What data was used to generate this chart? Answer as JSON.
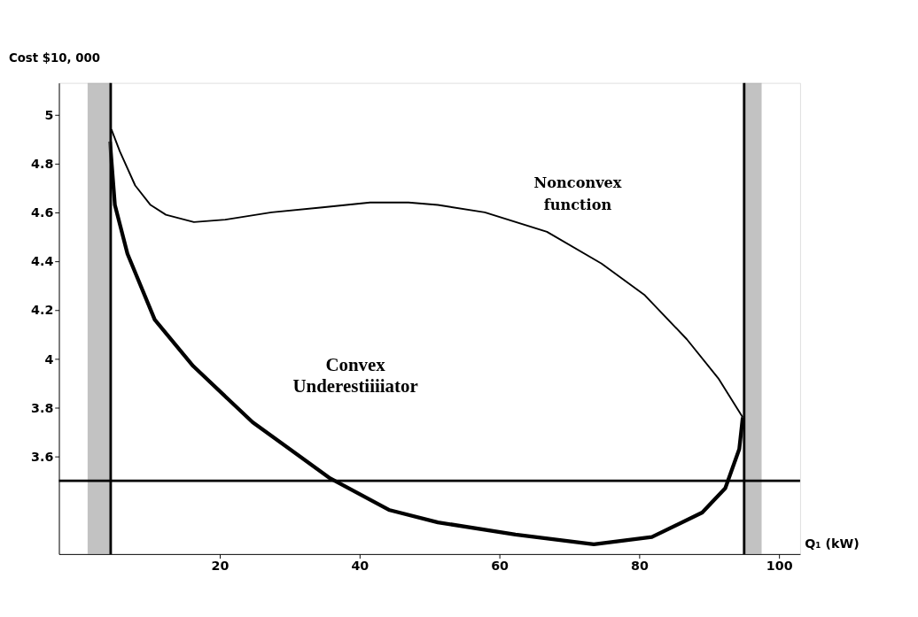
{
  "chart_data": {
    "type": "line",
    "ylabel": "Cost $10, 000",
    "xlabel": "Q₁ (kW)",
    "xlim": [
      -3,
      103
    ],
    "xticks": [
      20,
      40,
      60,
      80,
      100
    ],
    "ylim": [
      3.2,
      5.13
    ],
    "yticks": [
      3.6,
      3.8,
      4,
      4.2,
      4.4,
      4.6,
      4.8,
      5
    ],
    "grid": false,
    "marker": "none",
    "line_style": "solid",
    "series": [
      {
        "color": "#000000",
        "x": [
          4.5,
          5.7,
          7.9,
          10.1,
          12.3,
          16.3,
          20.8,
          27.4,
          34.7,
          41.5,
          47,
          51.2,
          57.9,
          66.8,
          74.6,
          80.8,
          86.8,
          91.3,
          94.8
        ],
        "values": [
          4.94,
          4.85,
          4.71,
          4.63,
          4.59,
          4.56,
          4.57,
          4.6,
          4.62,
          4.64,
          4.64,
          4.63,
          4.6,
          4.52,
          4.39,
          4.26,
          4.08,
          3.92,
          3.76
        ]
      },
      {
        "color": "#000000",
        "x": [
          4.3,
          5,
          6.8,
          10.7,
          16.2,
          24.7,
          35.8,
          44.3,
          51.2,
          62.3,
          73.5,
          81.8,
          89,
          92.3,
          94.3,
          94.8
        ],
        "values": [
          4.89,
          4.63,
          4.43,
          4.16,
          3.97,
          3.74,
          3.51,
          3.38,
          3.33,
          3.28,
          3.24,
          3.27,
          3.37,
          3.47,
          3.63,
          3.76
        ]
      }
    ],
    "ref_lines": [
      {
        "axis": "x",
        "value": 4.4,
        "color": "#000000"
      },
      {
        "axis": "x",
        "value": 95,
        "color": "#000000"
      },
      {
        "axis": "y",
        "value": 3.5,
        "color": "#000000"
      }
    ],
    "bands": [
      {
        "axis": "x",
        "from": 1.1,
        "to": 4.4,
        "color": "#9a9a9a"
      },
      {
        "axis": "x",
        "from": 95,
        "to": 97.5,
        "color": "#9a9a9a"
      }
    ],
    "annotations": [
      "Nonconvex function",
      "Convex Underestiiiiator"
    ]
  }
}
